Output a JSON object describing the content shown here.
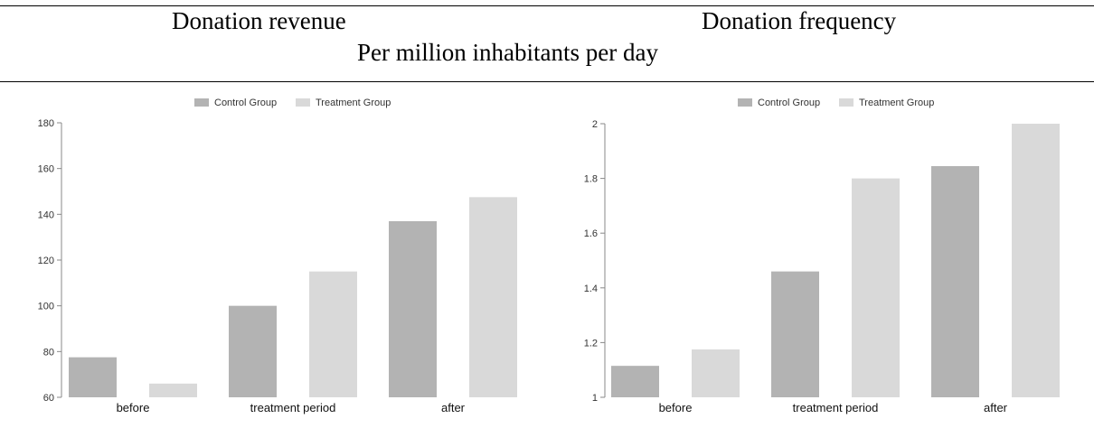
{
  "header": {
    "left_title": "Donation revenue",
    "right_title": "Donation frequency",
    "subtitle": "Per million inhabitants per day"
  },
  "colors": {
    "control": "#b3b3b3",
    "treatment": "#d9d9d9",
    "axis": "#888888"
  },
  "chart_data": [
    {
      "type": "bar",
      "categories": [
        "before",
        "treatment period",
        "after"
      ],
      "series": [
        {
          "name": "Control Group",
          "values": [
            77.5,
            100,
            137
          ]
        },
        {
          "name": "Treatment Group",
          "values": [
            66,
            115,
            147.5
          ]
        }
      ],
      "ylim": [
        60,
        180
      ],
      "yticks": [
        60,
        80,
        100,
        120,
        140,
        160,
        180
      ],
      "ytick_labels": [
        "60",
        "80",
        "100",
        "120",
        "140",
        "160",
        "180"
      ],
      "legend": "top-center",
      "grid": false
    },
    {
      "type": "bar",
      "categories": [
        "before",
        "treatment period",
        "after"
      ],
      "series": [
        {
          "name": "Control Group",
          "values": [
            1.115,
            1.46,
            1.845
          ]
        },
        {
          "name": "Treatment Group",
          "values": [
            1.175,
            1.8,
            2.0
          ]
        }
      ],
      "ylim": [
        1,
        2
      ],
      "yticks": [
        1,
        1.2,
        1.4,
        1.6,
        1.8,
        2
      ],
      "ytick_labels": [
        "1",
        "1.2",
        "1.4",
        "1.6",
        "1.8",
        "2"
      ],
      "legend": "top-center",
      "grid": false
    }
  ]
}
